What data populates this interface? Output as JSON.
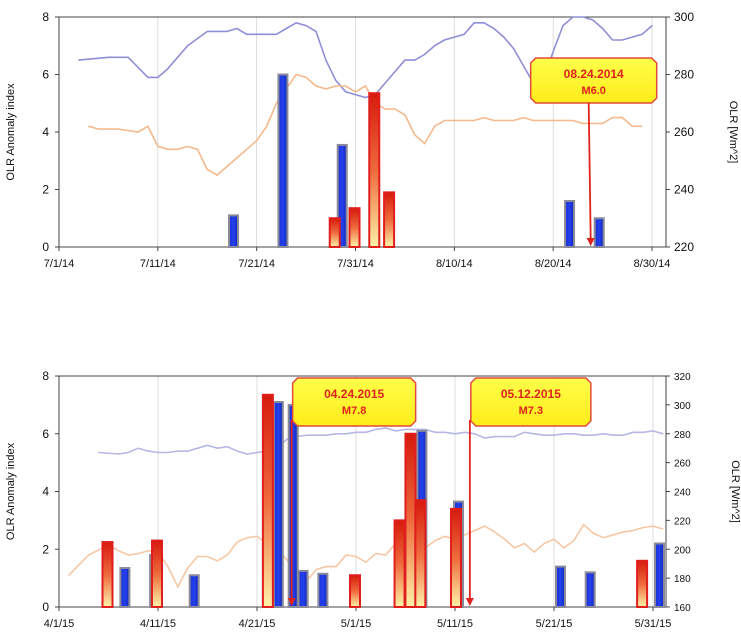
{
  "chart_data": [
    {
      "type": "bar",
      "ylabel": "OLR Anomaly index",
      "y2label": "OLR [Wm^2]",
      "ylim": [
        0,
        8
      ],
      "y2lim": [
        220,
        300
      ],
      "yticks": [
        0,
        2,
        4,
        6,
        8
      ],
      "y2ticks": [
        220,
        240,
        260,
        280,
        300
      ],
      "x_ticks": [
        "7/1/14",
        "7/11/14",
        "7/21/14",
        "7/31/14",
        "8/10/14",
        "8/20/14",
        "8/30/14"
      ],
      "grid": true,
      "blue_bars": [
        {
          "day": 17,
          "value": 1.1
        },
        {
          "day": 22,
          "value": 6.0
        },
        {
          "day": 28,
          "value": 3.55
        },
        {
          "day": 51,
          "value": 1.6
        },
        {
          "day": 54,
          "value": 1.0
        }
      ],
      "red_bars": [
        {
          "day": 28,
          "value": 1.0
        },
        {
          "day": 30,
          "value": 1.35
        },
        {
          "day": 32,
          "value": 5.35
        },
        {
          "day": 33.5,
          "value": 1.9
        }
      ],
      "series": [
        {
          "color": "#8f8fd8",
          "axis": "right",
          "kind": "line",
          "points": [
            [
              2,
              285
            ],
            [
              5,
              286
            ],
            [
              7,
              286
            ],
            [
              9,
              279
            ],
            [
              10,
              279
            ],
            [
              11,
              282
            ],
            [
              13,
              290
            ],
            [
              15,
              295
            ],
            [
              16,
              295
            ],
            [
              17,
              295
            ],
            [
              18,
              296
            ],
            [
              19,
              294
            ],
            [
              20,
              294
            ],
            [
              21,
              294
            ],
            [
              22,
              294
            ],
            [
              23,
              296
            ],
            [
              24,
              298
            ],
            [
              25,
              297
            ],
            [
              26,
              295
            ],
            [
              27,
              285
            ],
            [
              28,
              278
            ],
            [
              29,
              274
            ],
            [
              30,
              273
            ],
            [
              31,
              272
            ],
            [
              32,
              273
            ],
            [
              33,
              277
            ],
            [
              34,
              281
            ],
            [
              35,
              285
            ],
            [
              36,
              285
            ],
            [
              37,
              287
            ],
            [
              38,
              290
            ],
            [
              39,
              292
            ],
            [
              40,
              293
            ],
            [
              41,
              294
            ],
            [
              42,
              298
            ],
            [
              43,
              298
            ],
            [
              44,
              296
            ],
            [
              45,
              293
            ],
            [
              46,
              289
            ],
            [
              47,
              283
            ],
            [
              48,
              277
            ],
            [
              49,
              278
            ],
            [
              50,
              288
            ],
            [
              51,
              297
            ],
            [
              52,
              300
            ],
            [
              53,
              300
            ],
            [
              54,
              299
            ],
            [
              55,
              296
            ],
            [
              56,
              292
            ],
            [
              57,
              292
            ],
            [
              58,
              293
            ],
            [
              59,
              294
            ],
            [
              60,
              297
            ]
          ]
        },
        {
          "color": "#f4b98c",
          "axis": "right",
          "kind": "line",
          "points": [
            [
              3,
              262
            ],
            [
              4,
              261
            ],
            [
              6,
              261
            ],
            [
              8,
              260
            ],
            [
              9,
              262
            ],
            [
              10,
              255
            ],
            [
              11,
              254
            ],
            [
              12,
              254
            ],
            [
              13,
              255
            ],
            [
              14,
              254
            ],
            [
              15,
              247
            ],
            [
              16,
              245
            ],
            [
              17,
              248
            ],
            [
              18,
              251
            ],
            [
              19,
              254
            ],
            [
              20,
              257
            ],
            [
              21,
              262
            ],
            [
              22,
              270
            ],
            [
              23,
              275
            ],
            [
              24,
              280
            ],
            [
              25,
              279
            ],
            [
              26,
              276
            ],
            [
              27,
              275
            ],
            [
              28,
              276
            ],
            [
              29,
              276
            ],
            [
              30,
              274
            ],
            [
              31,
              276
            ],
            [
              32,
              270
            ],
            [
              33,
              268
            ],
            [
              34,
              268
            ],
            [
              35,
              266
            ],
            [
              36,
              259
            ],
            [
              37,
              256
            ],
            [
              38,
              262
            ],
            [
              39,
              264
            ],
            [
              40,
              264
            ],
            [
              41,
              264
            ],
            [
              42,
              264
            ],
            [
              43,
              265
            ],
            [
              44,
              264
            ],
            [
              45,
              264
            ],
            [
              46,
              264
            ],
            [
              47,
              265
            ],
            [
              48,
              264
            ],
            [
              49,
              264
            ],
            [
              50,
              264
            ],
            [
              51,
              264
            ],
            [
              52,
              264
            ],
            [
              53,
              263
            ],
            [
              54,
              263
            ],
            [
              55,
              263
            ],
            [
              56,
              265
            ],
            [
              57,
              265
            ],
            [
              58,
              262
            ],
            [
              59,
              262
            ]
          ]
        }
      ],
      "annotations": [
        {
          "date": "08.24.2014",
          "magnitude": "M6.0",
          "day": 54
        }
      ]
    },
    {
      "type": "bar",
      "ylabel": "OLR Anomaly index",
      "y2label": "OLR [Wm^2]",
      "ylim": [
        0,
        8
      ],
      "y2lim": [
        160,
        320
      ],
      "yticks": [
        0,
        2,
        4,
        6,
        8
      ],
      "y2ticks": [
        160,
        180,
        200,
        220,
        240,
        260,
        280,
        300,
        320
      ],
      "x_ticks": [
        "4/1/15",
        "4/11/15",
        "4/21/15",
        "5/1/15",
        "5/11/15",
        "5/21/15",
        "5/31/15"
      ],
      "grid": true,
      "blue_bars": [
        {
          "day": 6,
          "value": 1.35
        },
        {
          "day": 9,
          "value": 1.8
        },
        {
          "day": 13,
          "value": 1.1
        },
        {
          "day": 21.5,
          "value": 7.1
        },
        {
          "day": 23,
          "value": 7.0
        },
        {
          "day": 24,
          "value": 1.25
        },
        {
          "day": 26,
          "value": 1.15
        },
        {
          "day": 36,
          "value": 6.1
        },
        {
          "day": 39.7,
          "value": 3.65
        },
        {
          "day": 50,
          "value": 1.4
        },
        {
          "day": 53,
          "value": 1.2
        },
        {
          "day": 60,
          "value": 2.2
        }
      ],
      "red_bars": [
        {
          "day": 5,
          "value": 2.25
        },
        {
          "day": 10,
          "value": 2.3
        },
        {
          "day": 21.2,
          "value": 7.35
        },
        {
          "day": 30,
          "value": 1.1
        },
        {
          "day": 34.5,
          "value": 3.0
        },
        {
          "day": 35.6,
          "value": 6.0
        },
        {
          "day": 36.6,
          "value": 3.7
        },
        {
          "day": 40.2,
          "value": 3.4
        },
        {
          "day": 59,
          "value": 1.6
        }
      ],
      "series": [
        {
          "color": "#b7b7e6",
          "axis": "right",
          "kind": "line",
          "points": [
            [
              4,
              267
            ],
            [
              6,
              266
            ],
            [
              7,
              267
            ],
            [
              8,
              270
            ],
            [
              9,
              268
            ],
            [
              10,
              267
            ],
            [
              11,
              267
            ],
            [
              12,
              268
            ],
            [
              13,
              268
            ],
            [
              14,
              270
            ],
            [
              15,
              272
            ],
            [
              16,
              270
            ],
            [
              17,
              271
            ],
            [
              18,
              268
            ],
            [
              19,
              266
            ],
            [
              20,
              267
            ],
            [
              21,
              268
            ],
            [
              22,
              270
            ],
            [
              23,
              276
            ],
            [
              24,
              278
            ],
            [
              25,
              279
            ],
            [
              26,
              279
            ],
            [
              27,
              279
            ],
            [
              28,
              280
            ],
            [
              29,
              280
            ],
            [
              30,
              281
            ],
            [
              31,
              281
            ],
            [
              32,
              283
            ],
            [
              33,
              284
            ],
            [
              34,
              282
            ],
            [
              35,
              283
            ],
            [
              36,
              283
            ],
            [
              37,
              283
            ],
            [
              38,
              281
            ],
            [
              39,
              281
            ],
            [
              40,
              280
            ],
            [
              41,
              281
            ],
            [
              42,
              280
            ],
            [
              43,
              277
            ],
            [
              44,
              278
            ],
            [
              45,
              278
            ],
            [
              46,
              278
            ],
            [
              47,
              281
            ],
            [
              48,
              280
            ],
            [
              49,
              279
            ],
            [
              50,
              279
            ],
            [
              51,
              280
            ],
            [
              52,
              280
            ],
            [
              53,
              279
            ],
            [
              54,
              279
            ],
            [
              55,
              280
            ],
            [
              56,
              279
            ],
            [
              57,
              279
            ],
            [
              58,
              281
            ],
            [
              59,
              281
            ],
            [
              60,
              282
            ],
            [
              61,
              280
            ]
          ]
        },
        {
          "color": "#f6c7a4",
          "axis": "right",
          "kind": "line",
          "points": [
            [
              1,
              182
            ],
            [
              3,
              196
            ],
            [
              5,
              203
            ],
            [
              6,
              199
            ],
            [
              7,
              196
            ],
            [
              8,
              197
            ],
            [
              9,
              199
            ],
            [
              10,
              198
            ],
            [
              11,
              188
            ],
            [
              12,
              174
            ],
            [
              13,
              187
            ],
            [
              14,
              195
            ],
            [
              15,
              195
            ],
            [
              16,
              192
            ],
            [
              17,
              196
            ],
            [
              18,
              205
            ],
            [
              19,
              208
            ],
            [
              20,
              209
            ],
            [
              21,
              204
            ],
            [
              22,
              200
            ],
            [
              23,
              193
            ],
            [
              24,
              182
            ],
            [
              25,
              178
            ],
            [
              26,
              186
            ],
            [
              27,
              188
            ],
            [
              28,
              188
            ],
            [
              29,
              196
            ],
            [
              30,
              195
            ],
            [
              31,
              191
            ],
            [
              32,
              197
            ],
            [
              33,
              196
            ],
            [
              34,
              204
            ],
            [
              35,
              201
            ],
            [
              36,
              200
            ],
            [
              37,
              201
            ],
            [
              38,
              206
            ],
            [
              39,
              209
            ],
            [
              40,
              207
            ],
            [
              41,
              210
            ],
            [
              42,
              213
            ],
            [
              43,
              216
            ],
            [
              44,
              212
            ],
            [
              45,
              207
            ],
            [
              46,
              201
            ],
            [
              47,
              204
            ],
            [
              48,
              198
            ],
            [
              49,
              204
            ],
            [
              50,
              207
            ],
            [
              51,
              201
            ],
            [
              52,
              206
            ],
            [
              53,
              217
            ],
            [
              54,
              211
            ],
            [
              55,
              208
            ],
            [
              56,
              210
            ],
            [
              57,
              212
            ],
            [
              58,
              213
            ],
            [
              59,
              215
            ],
            [
              60,
              216
            ],
            [
              61,
              214
            ]
          ]
        }
      ],
      "annotations": [
        {
          "date": "04.24.2015",
          "magnitude": "M7.8",
          "day": 23.5
        },
        {
          "date": "05.12.2015",
          "magnitude": "M7.3",
          "day": 41.5
        }
      ]
    }
  ]
}
